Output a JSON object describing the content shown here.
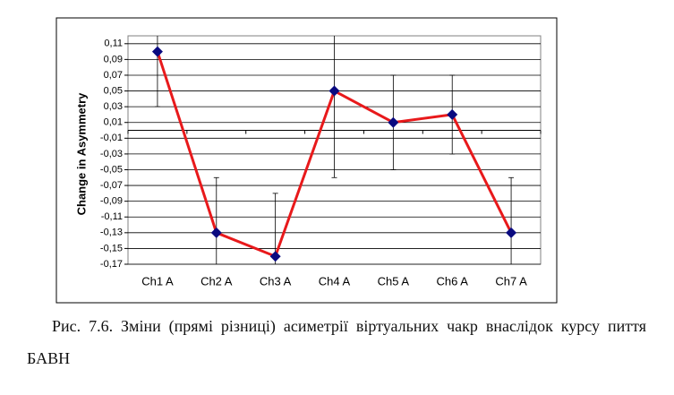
{
  "chart_data": {
    "type": "line",
    "y_label": "Change in Asymmetry",
    "categories": [
      "Ch1 A",
      "Ch2 A",
      "Ch3 A",
      "Ch4 A",
      "Ch5 A",
      "Ch6 A",
      "Ch7 A"
    ],
    "values": [
      0.1,
      -0.13,
      -0.16,
      0.05,
      0.01,
      0.02,
      -0.13
    ],
    "errors": [
      0.07,
      0.07,
      0.08,
      0.11,
      0.06,
      0.05,
      0.07
    ],
    "color": "#e8191b",
    "marker_color": "#0a0a80",
    "ylim": [
      -0.17,
      0.12
    ],
    "yticks": [
      {
        "value": 0.11,
        "label": "0,11"
      },
      {
        "value": 0.09,
        "label": "0,09"
      },
      {
        "value": 0.07,
        "label": "0,07"
      },
      {
        "value": 0.05,
        "label": "0,05"
      },
      {
        "value": 0.03,
        "label": "0,03"
      },
      {
        "value": 0.01,
        "label": "0,01"
      },
      {
        "value": -0.01,
        "label": "-0,01"
      },
      {
        "value": -0.03,
        "label": "-0,03"
      },
      {
        "value": -0.05,
        "label": "-0,05"
      },
      {
        "value": -0.07,
        "label": "-0,07"
      },
      {
        "value": -0.09,
        "label": "-0,09"
      },
      {
        "value": -0.11,
        "label": "-0,11"
      },
      {
        "value": -0.13,
        "label": "-0,13"
      },
      {
        "value": -0.15,
        "label": "-0,15"
      },
      {
        "value": -0.17,
        "label": "-0,17"
      }
    ],
    "grid": true
  },
  "caption": "Рис. 7.6. Зміни (прямі різниці) асиметрії віртуальних чакр внаслідок курсу пиття БАВН"
}
